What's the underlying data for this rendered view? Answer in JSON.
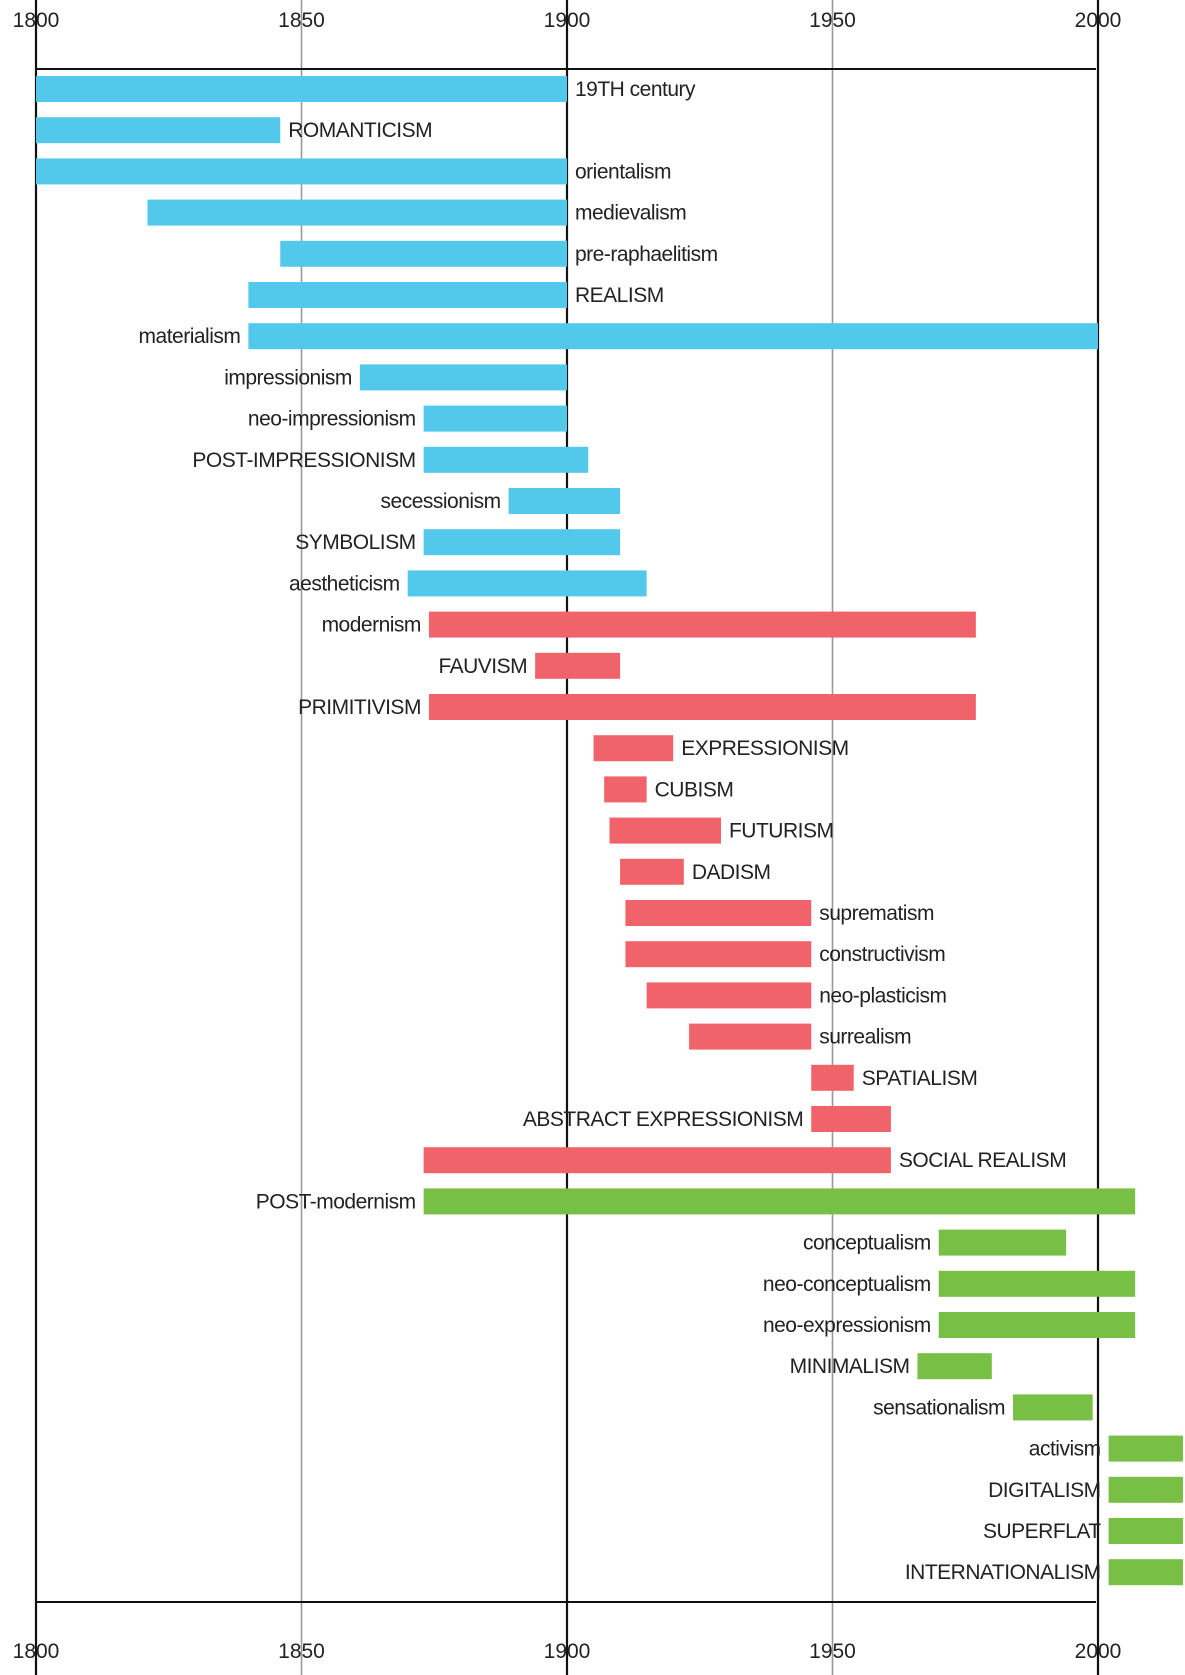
{
  "chart_data": {
    "type": "bar",
    "orientation": "horizontal",
    "subtype": "timeline",
    "title": "",
    "xlabel": "",
    "ylabel": "",
    "xlim": [
      1800,
      2016
    ],
    "xticks": [
      1800,
      1850,
      1900,
      1950,
      2000
    ],
    "grid": true,
    "colors": {
      "blue": "#52c9ea",
      "red": "#f0636b",
      "green": "#78bf45"
    },
    "bars": [
      {
        "label": "19TH century",
        "start": 1800,
        "end": 1900,
        "color": "blue",
        "label_side": "right"
      },
      {
        "label": "ROMANTICISM",
        "start": 1800,
        "end": 1846,
        "color": "blue",
        "label_side": "right"
      },
      {
        "label": "orientalism",
        "start": 1800,
        "end": 1900,
        "color": "blue",
        "label_side": "right"
      },
      {
        "label": "medievalism",
        "start": 1821,
        "end": 1900,
        "color": "blue",
        "label_side": "right"
      },
      {
        "label": "pre-raphaelitism",
        "start": 1846,
        "end": 1900,
        "color": "blue",
        "label_side": "right"
      },
      {
        "label": "REALISM",
        "start": 1840,
        "end": 1900,
        "color": "blue",
        "label_side": "right"
      },
      {
        "label": "materialism",
        "start": 1840,
        "end": 2000,
        "color": "blue",
        "label_side": "left"
      },
      {
        "label": "impressionism",
        "start": 1861,
        "end": 1900,
        "color": "blue",
        "label_side": "left"
      },
      {
        "label": "neo-impressionism",
        "start": 1873,
        "end": 1900,
        "color": "blue",
        "label_side": "left"
      },
      {
        "label": "POST-IMPRESSIONISM",
        "start": 1873,
        "end": 1904,
        "color": "blue",
        "label_side": "left"
      },
      {
        "label": "secessionism",
        "start": 1889,
        "end": 1910,
        "color": "blue",
        "label_side": "left"
      },
      {
        "label": "SYMBOLISM",
        "start": 1873,
        "end": 1910,
        "color": "blue",
        "label_side": "left"
      },
      {
        "label": "aestheticism",
        "start": 1870,
        "end": 1915,
        "color": "blue",
        "label_side": "left"
      },
      {
        "label": "modernism",
        "start": 1874,
        "end": 1977,
        "color": "red",
        "label_side": "left"
      },
      {
        "label": "FAUVISM",
        "start": 1894,
        "end": 1910,
        "color": "red",
        "label_side": "left"
      },
      {
        "label": "PRIMITIVISM",
        "start": 1874,
        "end": 1977,
        "color": "red",
        "label_side": "left"
      },
      {
        "label": "EXPRESSIONISM",
        "start": 1905,
        "end": 1920,
        "color": "red",
        "label_side": "right"
      },
      {
        "label": "CUBISM",
        "start": 1907,
        "end": 1915,
        "color": "red",
        "label_side": "right"
      },
      {
        "label": "FUTURISM",
        "start": 1908,
        "end": 1929,
        "color": "red",
        "label_side": "right"
      },
      {
        "label": "DADISM",
        "start": 1910,
        "end": 1922,
        "color": "red",
        "label_side": "right"
      },
      {
        "label": "suprematism",
        "start": 1911,
        "end": 1946,
        "color": "red",
        "label_side": "right"
      },
      {
        "label": "constructivism",
        "start": 1911,
        "end": 1946,
        "color": "red",
        "label_side": "right"
      },
      {
        "label": "neo-plasticism",
        "start": 1915,
        "end": 1946,
        "color": "red",
        "label_side": "right"
      },
      {
        "label": "surrealism",
        "start": 1923,
        "end": 1946,
        "color": "red",
        "label_side": "right"
      },
      {
        "label": "SPATIALISM",
        "start": 1946,
        "end": 1954,
        "color": "red",
        "label_side": "right"
      },
      {
        "label": "ABSTRACT EXPRESSIONISM",
        "start": 1946,
        "end": 1961,
        "color": "red",
        "label_side": "left"
      },
      {
        "label": "SOCIAL REALISM",
        "start": 1873,
        "end": 1961,
        "color": "red",
        "label_side": "right"
      },
      {
        "label": "POST-modernism",
        "start": 1873,
        "end": 2007,
        "color": "green",
        "label_side": "left"
      },
      {
        "label": "conceptualism",
        "start": 1970,
        "end": 1994,
        "color": "green",
        "label_side": "left"
      },
      {
        "label": "neo-conceptualism",
        "start": 1970,
        "end": 2007,
        "color": "green",
        "label_side": "left"
      },
      {
        "label": "neo-expressionism",
        "start": 1970,
        "end": 2007,
        "color": "green",
        "label_side": "left"
      },
      {
        "label": "MINIMALISM",
        "start": 1966,
        "end": 1980,
        "color": "green",
        "label_side": "left"
      },
      {
        "label": "sensationalism",
        "start": 1984,
        "end": 1999,
        "color": "green",
        "label_side": "left"
      },
      {
        "label": "activism",
        "start": 2002,
        "end": 2016,
        "color": "green",
        "label_side": "left"
      },
      {
        "label": "DIGITALISM",
        "start": 2002,
        "end": 2016,
        "color": "green",
        "label_side": "left"
      },
      {
        "label": "SUPERFLAT",
        "start": 2002,
        "end": 2016,
        "color": "green",
        "label_side": "left"
      },
      {
        "label": "INTERNATIONALISM",
        "start": 2002,
        "end": 2016,
        "color": "green",
        "label_side": "left"
      }
    ]
  }
}
